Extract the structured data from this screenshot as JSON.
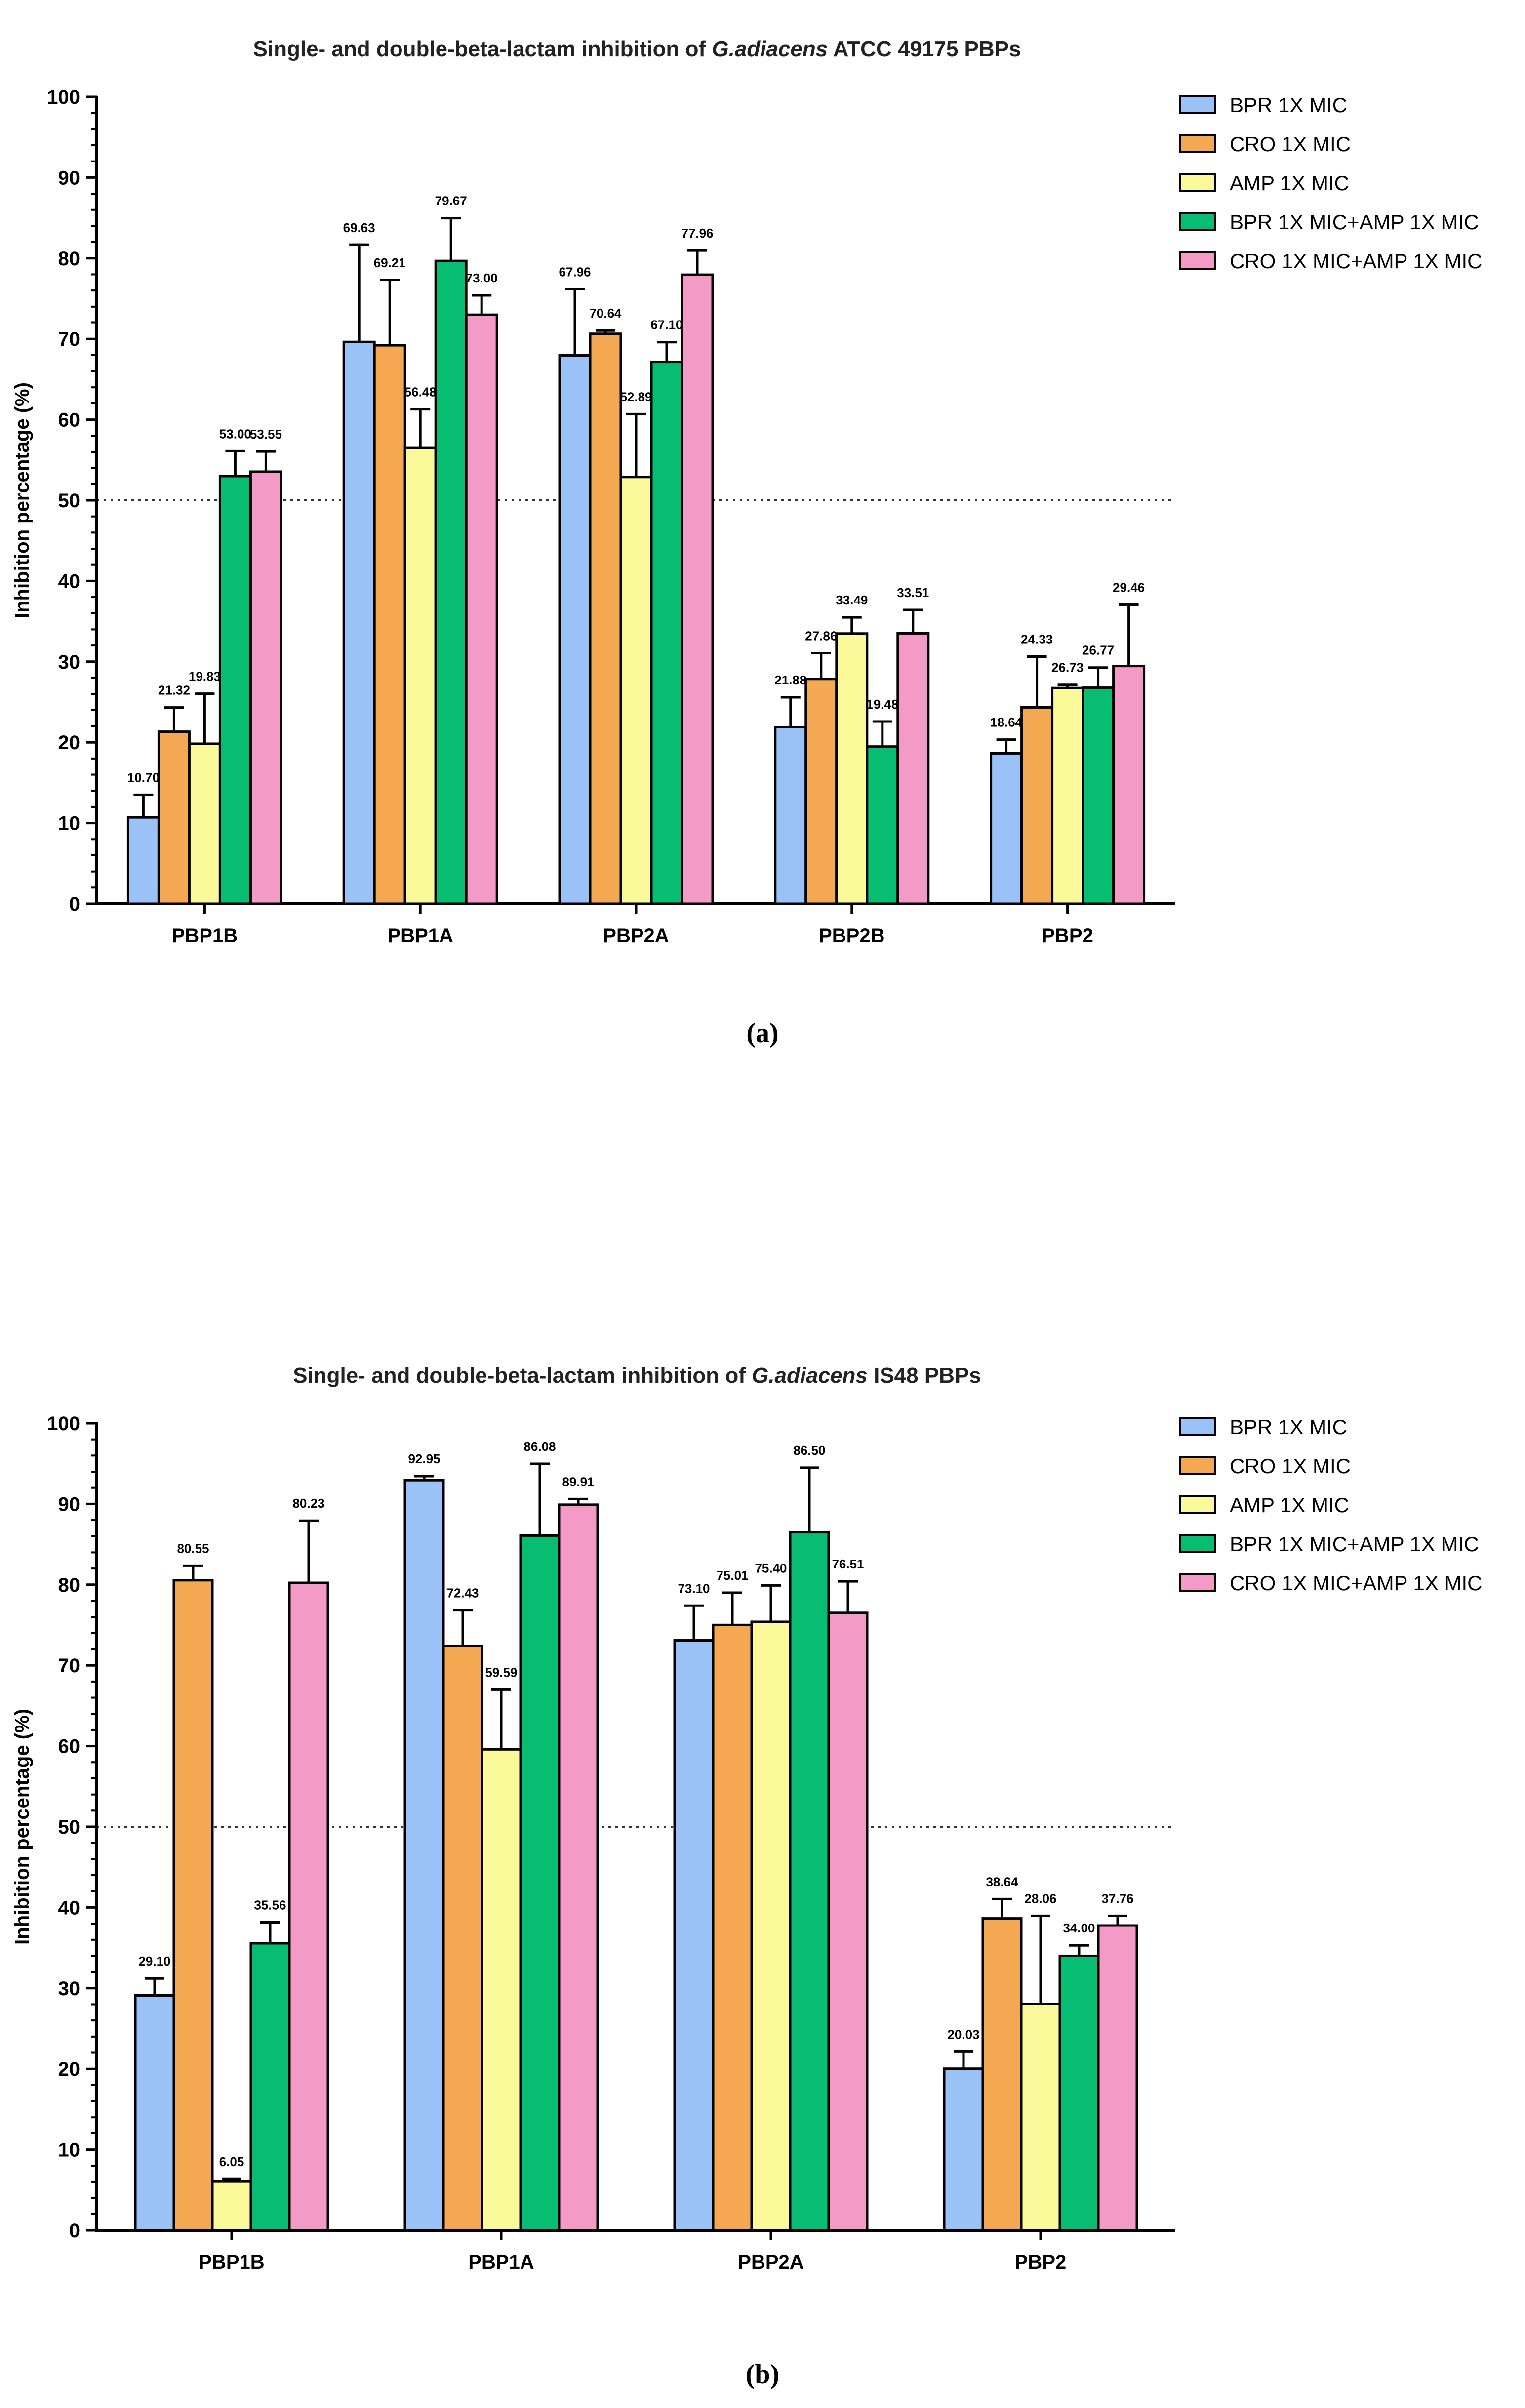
{
  "legend": [
    "BPR 1X MIC",
    "CRO 1X MIC",
    "AMP 1X MIC",
    "BPR 1X MIC+AMP 1X MIC",
    "CRO 1X MIC+AMP 1X MIC"
  ],
  "colors": [
    "#9bc2f7",
    "#f5a852",
    "#fbfa9b",
    "#06bd72",
    "#f49ac7"
  ],
  "panel_labels": {
    "a": "(a)",
    "b": "(b)"
  },
  "chart_data": [
    {
      "type": "bar",
      "title_pre": "Single- and double-beta-lactam inhibition of ",
      "title_italic": "G.adiacens",
      "title_post": " ATCC 49175 PBPs",
      "ylabel": "Inhibition percentage (%)",
      "xlabel": "",
      "ylim": [
        0,
        100
      ],
      "yticks": [
        0,
        10,
        20,
        30,
        40,
        50,
        60,
        70,
        80,
        90,
        100
      ],
      "reference_line": 50,
      "categories": [
        "PBP1B",
        "PBP1A",
        "PBP2A",
        "PBP2B",
        "PBP2"
      ],
      "series": [
        {
          "name": "BPR 1X MIC",
          "values": [
            10.7,
            69.63,
            67.96,
            21.88,
            18.64
          ],
          "errors": [
            2.8,
            12.0,
            8.2,
            3.7,
            1.7
          ]
        },
        {
          "name": "CRO 1X MIC",
          "values": [
            21.32,
            69.21,
            70.64,
            27.86,
            24.33
          ],
          "errors": [
            3.0,
            8.1,
            0.4,
            3.2,
            6.3
          ]
        },
        {
          "name": "AMP 1X MIC",
          "values": [
            19.83,
            56.48,
            52.89,
            33.49,
            26.73
          ],
          "errors": [
            6.2,
            4.8,
            7.8,
            2.0,
            0.4
          ]
        },
        {
          "name": "BPR 1X MIC+AMP 1X MIC",
          "values": [
            53.0,
            79.67,
            67.1,
            19.48,
            26.77
          ],
          "errors": [
            3.1,
            5.3,
            2.5,
            3.1,
            2.5
          ]
        },
        {
          "name": "CRO 1X MIC+AMP 1X MIC",
          "values": [
            53.55,
            73.0,
            77.96,
            33.51,
            29.46
          ],
          "errors": [
            2.5,
            2.4,
            3.0,
            2.9,
            7.6
          ]
        }
      ],
      "labels": [
        [
          "10.70",
          "69.63",
          "67.96",
          "21.88",
          "18.64"
        ],
        [
          "21.32",
          "69.21",
          "70.64",
          "27.86",
          "24.33"
        ],
        [
          "19.83",
          "56.48",
          "52.89",
          "33.49",
          "26.73"
        ],
        [
          "53.00",
          "79.67",
          "67.10",
          "19.48",
          "26.77"
        ],
        [
          "53.55",
          "73.00",
          "77.96",
          "33.51",
          "29.46"
        ]
      ]
    },
    {
      "type": "bar",
      "title_pre": "Single- and double-beta-lactam inhibition of ",
      "title_italic": "G.adiacens",
      "title_post": " IS48 PBPs",
      "ylabel": "Inhibition percentage (%)",
      "xlabel": "",
      "ylim": [
        0,
        100
      ],
      "yticks": [
        0,
        10,
        20,
        30,
        40,
        50,
        60,
        70,
        80,
        90,
        100
      ],
      "reference_line": 50,
      "categories": [
        "PBP1B",
        "PBP1A",
        "PBP2A",
        "PBP2"
      ],
      "series": [
        {
          "name": "BPR 1X MIC",
          "values": [
            29.1,
            92.95,
            73.1,
            20.03
          ],
          "errors": [
            2.1,
            0.5,
            4.3,
            2.1
          ]
        },
        {
          "name": "CRO 1X MIC",
          "values": [
            80.55,
            72.43,
            75.01,
            38.64
          ],
          "errors": [
            1.8,
            4.4,
            4.0,
            2.4
          ]
        },
        {
          "name": "AMP 1X MIC",
          "values": [
            6.05,
            59.59,
            75.4,
            28.06
          ],
          "errors": [
            0.3,
            7.4,
            4.5,
            10.9
          ]
        },
        {
          "name": "BPR 1X MIC+AMP 1X MIC",
          "values": [
            35.56,
            86.08,
            86.5,
            34.0
          ],
          "errors": [
            2.6,
            8.9,
            8.0,
            1.3
          ]
        },
        {
          "name": "CRO 1X MIC+AMP 1X MIC",
          "values": [
            80.23,
            89.91,
            76.51,
            37.76
          ],
          "errors": [
            7.7,
            0.7,
            3.9,
            1.2
          ]
        }
      ],
      "labels": [
        [
          "29.10",
          "92.95",
          "73.10",
          "20.03"
        ],
        [
          "80.55",
          "72.43",
          "75.01",
          "38.64"
        ],
        [
          "6.05",
          "59.59",
          "75.40",
          "28.06"
        ],
        [
          "35.56",
          "86.08",
          "86.50",
          "34.00"
        ],
        [
          "80.23",
          "89.91",
          "76.51",
          "37.76"
        ]
      ]
    }
  ]
}
